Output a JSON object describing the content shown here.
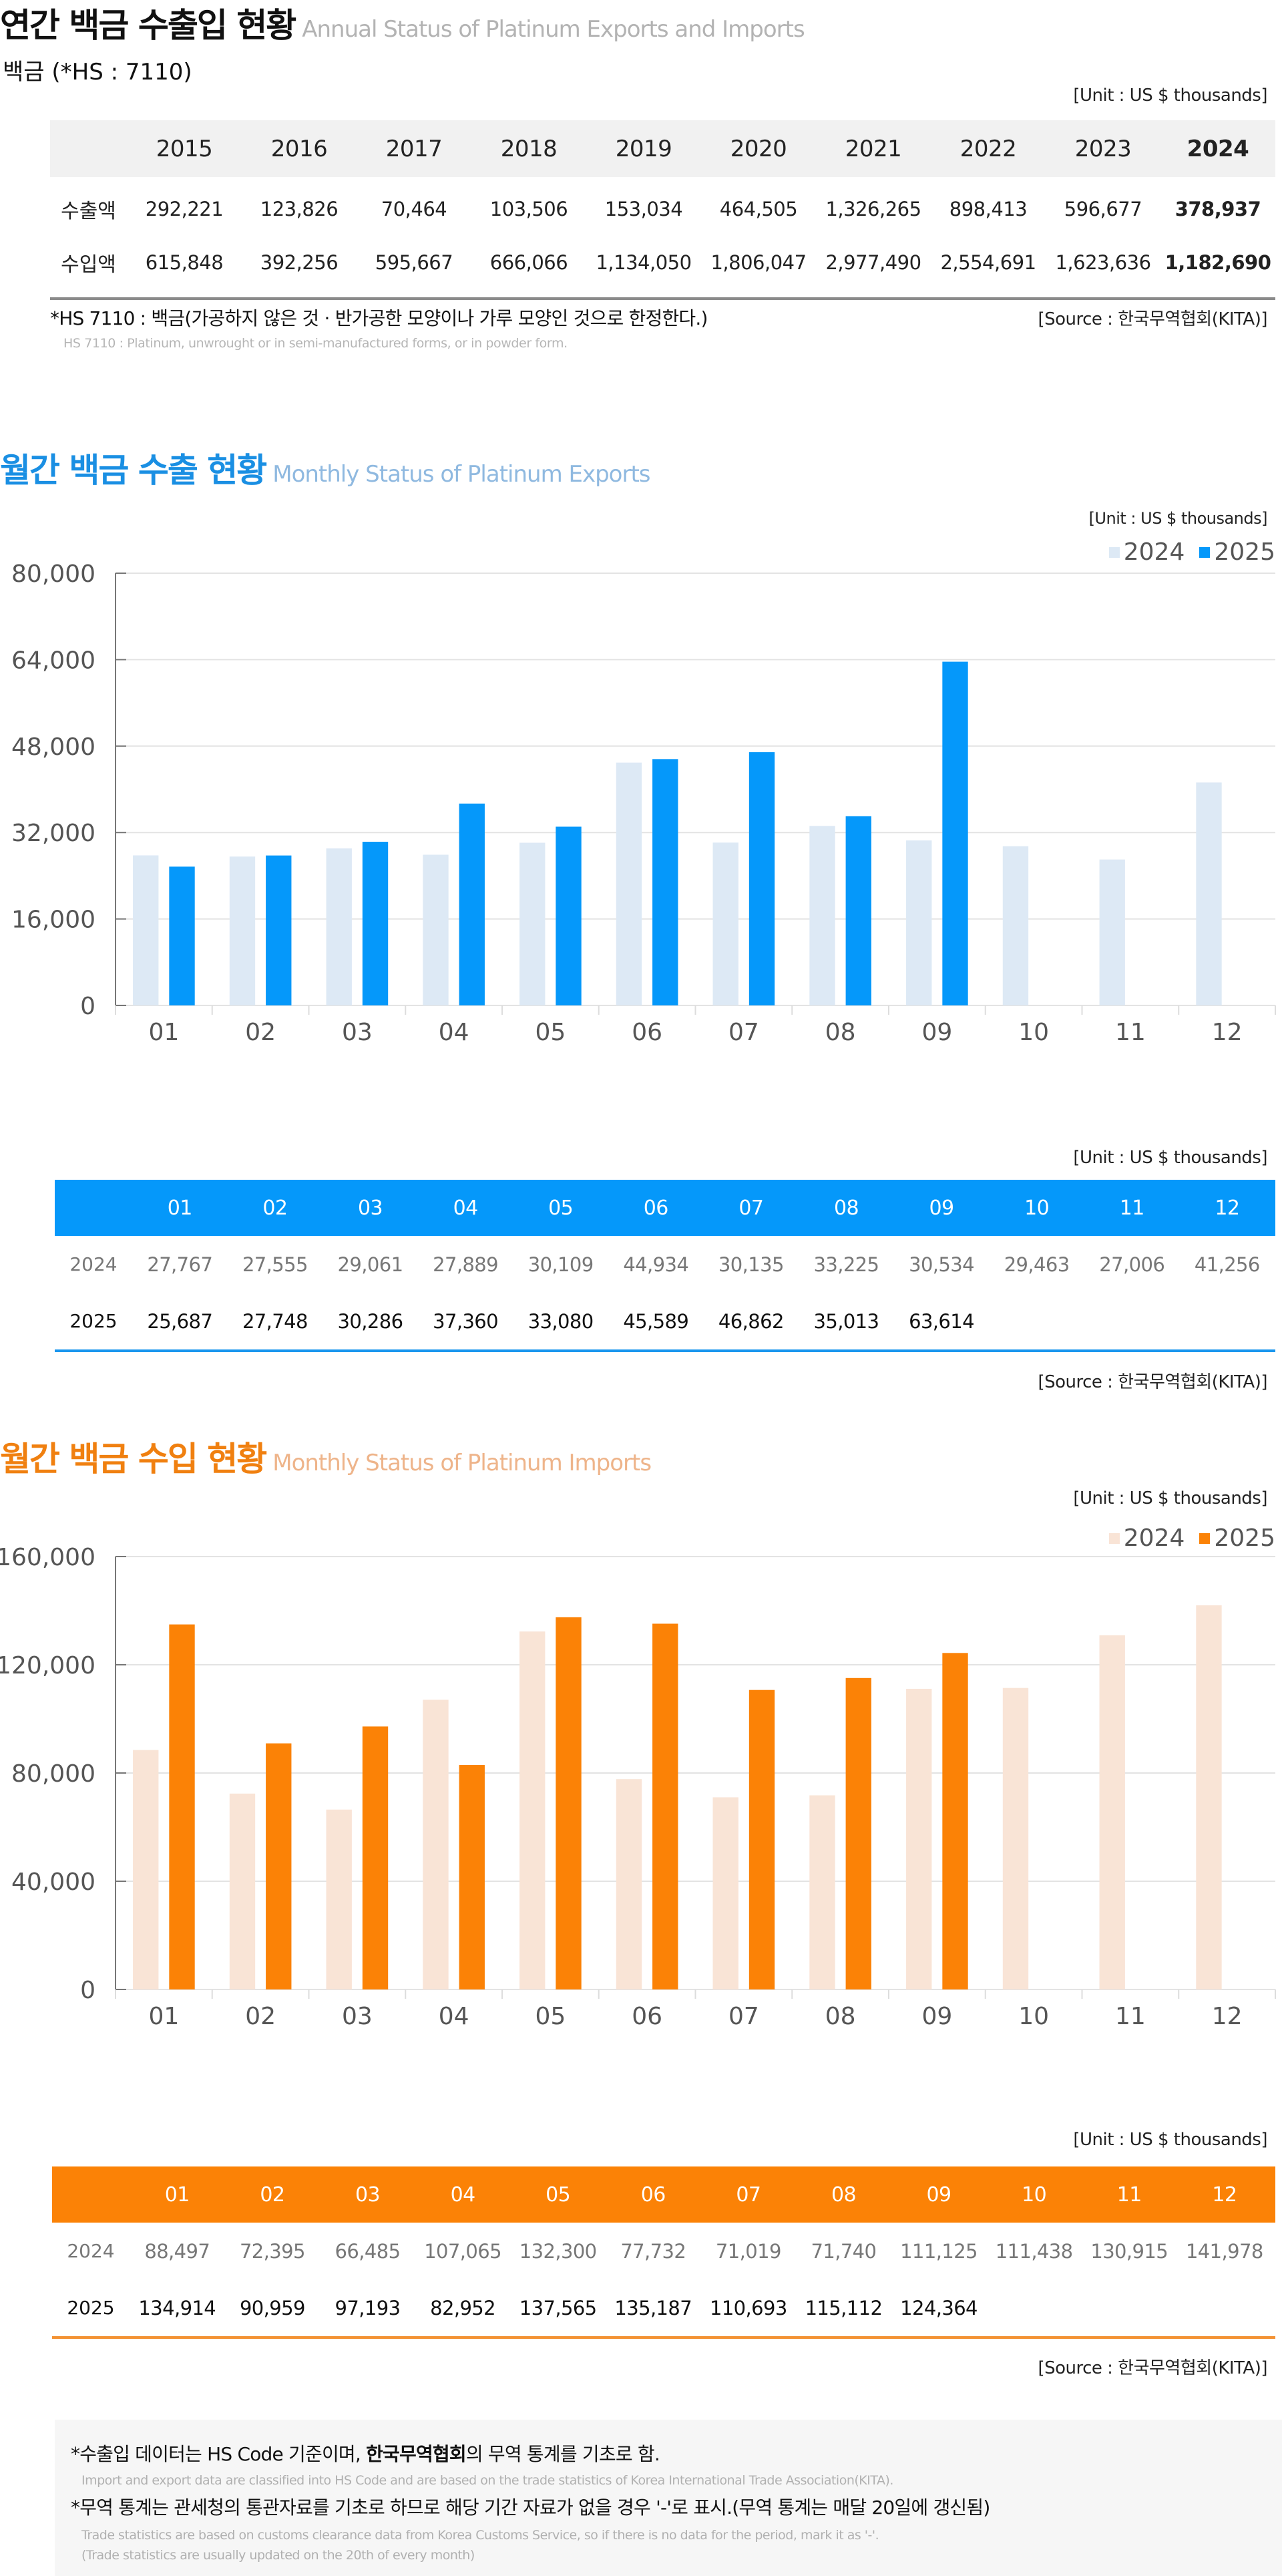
{
  "annual": {
    "title_ko": "연간 백금 수출입 현황",
    "title_en": "Annual Status of Platinum Exports and Imports",
    "subtitle": "백금 (*HS : 7110)",
    "unit": "[Unit : US $ thousands]",
    "years": [
      "2015",
      "2016",
      "2017",
      "2018",
      "2019",
      "2020",
      "2021",
      "2022",
      "2023",
      "2024"
    ],
    "rows": [
      {
        "label": "수출액",
        "values": [
          "292,221",
          "123,826",
          "70,464",
          "103,506",
          "153,034",
          "464,505",
          "1,326,265",
          "898,413",
          "596,677",
          "378,937"
        ]
      },
      {
        "label": "수입액",
        "values": [
          "615,848",
          "392,256",
          "595,667",
          "666,066",
          "1,134,050",
          "1,806,047",
          "2,977,490",
          "2,554,691",
          "1,623,636",
          "1,182,690"
        ]
      }
    ],
    "note_ko": "*HS 7110 : 백금(가공하지 않은 것 · 반가공한 모양이나 가루 모양인 것으로 한정한다.)",
    "note_en": "HS 7110 : Platinum, unwrought or in semi-manufactured forms, or in powder form.",
    "source": "[Source : 한국무역협회(KITA)]"
  },
  "exports": {
    "title_ko": "월간 백금 수출 현황",
    "title_en": "Monthly Status of Platinum Exports",
    "unit": "[Unit : US $ thousands]",
    "table_unit": "[Unit : US $ thousands]",
    "source": "[Source : 한국무역협회(KITA)]",
    "colors": {
      "2024": "#dde9f5",
      "2025": "#0598fa",
      "title": "#1a8fe3",
      "title_en": "#8fb9e0",
      "header_bg": "#0598fa"
    },
    "months": [
      "01",
      "02",
      "03",
      "04",
      "05",
      "06",
      "07",
      "08",
      "09",
      "10",
      "11",
      "12"
    ],
    "rows": [
      {
        "label": "2024",
        "values": [
          "27,767",
          "27,555",
          "29,061",
          "27,889",
          "30,109",
          "44,934",
          "30,135",
          "33,225",
          "30,534",
          "29,463",
          "27,006",
          "41,256"
        ]
      },
      {
        "label": "2025",
        "values": [
          "25,687",
          "27,748",
          "30,286",
          "37,360",
          "33,080",
          "45,589",
          "46,862",
          "35,013",
          "63,614",
          "",
          "",
          ""
        ]
      }
    ]
  },
  "imports": {
    "title_ko": "월간 백금 수입 현황",
    "title_en": "Monthly Status of Platinum Imports",
    "unit": "[Unit : US $ thousands]",
    "table_unit": "[Unit : US $ thousands]",
    "source": "[Source : 한국무역협회(KITA)]",
    "colors": {
      "2024": "#f9e4d6",
      "2025": "#fb8206",
      "title": "#f08010",
      "title_en": "#eeb48a",
      "header_bg": "#fb8206"
    },
    "months": [
      "01",
      "02",
      "03",
      "04",
      "05",
      "06",
      "07",
      "08",
      "09",
      "10",
      "11",
      "12"
    ],
    "rows": [
      {
        "label": "2024",
        "values": [
          "88,497",
          "72,395",
          "66,485",
          "107,065",
          "132,300",
          "77,732",
          "71,019",
          "71,740",
          "111,125",
          "111,438",
          "130,915",
          "141,978"
        ]
      },
      {
        "label": "2025",
        "values": [
          "134,914",
          "90,959",
          "97,193",
          "82,952",
          "137,565",
          "135,187",
          "110,693",
          "115,112",
          "124,364",
          "",
          "",
          ""
        ]
      }
    ]
  },
  "chart_data": [
    {
      "type": "bar",
      "title": "월간 백금 수출 현황 Monthly Status of Platinum Exports",
      "xlabel": "",
      "ylabel": "US $ thousands",
      "categories": [
        "01",
        "02",
        "03",
        "04",
        "05",
        "06",
        "07",
        "08",
        "09",
        "10",
        "11",
        "12"
      ],
      "series": [
        {
          "name": "2024",
          "values": [
            27767,
            27555,
            29061,
            27889,
            30109,
            44934,
            30135,
            33225,
            30534,
            29463,
            27006,
            41256
          ]
        },
        {
          "name": "2025",
          "values": [
            25687,
            27748,
            30286,
            37360,
            33080,
            45589,
            46862,
            35013,
            63614,
            null,
            null,
            null
          ]
        }
      ],
      "ylim": [
        0,
        80000
      ],
      "yticks": [
        0,
        16000,
        32000,
        48000,
        64000,
        80000
      ],
      "ytick_labels": [
        "0",
        "16,000",
        "32,000",
        "48,000",
        "64,000",
        "80,000"
      ],
      "legend": [
        "2024",
        "2025"
      ],
      "legend_position": "top-right",
      "grid": true
    },
    {
      "type": "bar",
      "title": "월간 백금 수입 현황 Monthly Status of Platinum Imports",
      "xlabel": "",
      "ylabel": "US $ thousands",
      "categories": [
        "01",
        "02",
        "03",
        "04",
        "05",
        "06",
        "07",
        "08",
        "09",
        "10",
        "11",
        "12"
      ],
      "series": [
        {
          "name": "2024",
          "values": [
            88497,
            72395,
            66485,
            107065,
            132300,
            77732,
            71019,
            71740,
            111125,
            111438,
            130915,
            141978
          ]
        },
        {
          "name": "2025",
          "values": [
            134914,
            90959,
            97193,
            82952,
            137565,
            135187,
            110693,
            115112,
            124364,
            null,
            null,
            null
          ]
        }
      ],
      "ylim": [
        0,
        160000
      ],
      "yticks": [
        0,
        40000,
        80000,
        120000,
        160000
      ],
      "ytick_labels": [
        "0",
        "40,000",
        "80,000",
        "120,000",
        "160,000"
      ],
      "legend": [
        "2024",
        "2025"
      ],
      "legend_position": "top-right",
      "grid": true
    }
  ],
  "footer": {
    "line1_prefix": "*수출입 데이터는 HS Code 기준이며, ",
    "line1_bold": "한국무역협회",
    "line1_suffix": "의 무역 통계를 기초로 함.",
    "line1_en": "Import and export data are classified into HS Code and are based on the trade statistics of Korea International  Trade Association(KITA).",
    "line2": "*무역 통계는 관세청의  통관자료를 기초로 하므로 해당 기간 자료가 없을 경우 '-'로 표시.(무역 통계는 매달 20일에 갱신됨)",
    "line2_en": "Trade statistics are based on customs clearance data from Korea Customs Service, so if there is no data for the period, mark it as '-'.",
    "line3_en": "(Trade statistics are usually updated on the 20th of every month)"
  }
}
